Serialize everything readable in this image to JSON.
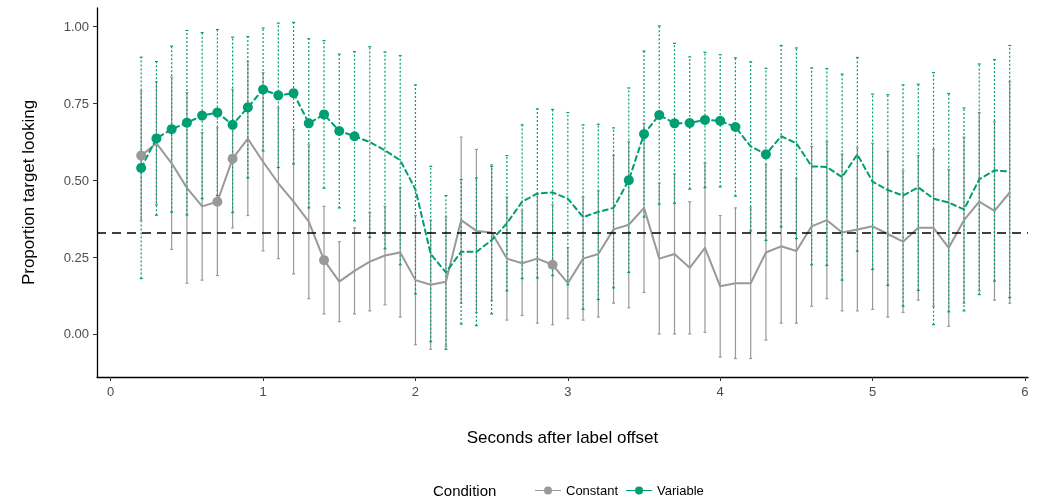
{
  "chart_data": {
    "type": "line",
    "xlabel": "Seconds after label offset",
    "ylabel": "Proportion target looking",
    "legend_title": "Condition",
    "x": [
      0.2,
      0.3,
      0.4,
      0.5,
      0.6,
      0.7,
      0.8,
      0.9,
      1.0,
      1.1,
      1.2,
      1.3,
      1.4,
      1.5,
      1.6,
      1.7,
      1.8,
      1.9,
      2.0,
      2.1,
      2.2,
      2.3,
      2.4,
      2.5,
      2.6,
      2.7,
      2.8,
      2.9,
      3.0,
      3.1,
      3.2,
      3.3,
      3.4,
      3.5,
      3.6,
      3.7,
      3.8,
      3.9,
      4.0,
      4.1,
      4.2,
      4.3,
      4.4,
      4.5,
      4.6,
      4.7,
      4.8,
      4.9,
      5.0,
      5.1,
      5.2,
      5.3,
      5.4,
      5.5,
      5.6,
      5.7,
      5.8,
      5.9
    ],
    "series": [
      {
        "name": "Constant",
        "color": "#999999",
        "line_style": "solid",
        "marker": "none",
        "values": [
          0.58,
          0.62,
          0.555,
          0.475,
          0.415,
          0.43,
          0.57,
          0.635,
          0.56,
          0.49,
          0.43,
          0.365,
          0.24,
          0.17,
          0.205,
          0.235,
          0.255,
          0.265,
          0.175,
          0.16,
          0.17,
          0.37,
          0.335,
          0.33,
          0.245,
          0.23,
          0.245,
          0.225,
          0.165,
          0.245,
          0.26,
          0.34,
          0.355,
          0.41,
          0.245,
          0.26,
          0.215,
          0.28,
          0.155,
          0.165,
          0.165,
          0.265,
          0.285,
          0.27,
          0.35,
          0.37,
          0.33,
          0.34,
          0.35,
          0.325,
          0.3,
          0.345,
          0.345,
          0.28,
          0.37,
          0.43,
          0.4,
          0.46
        ],
        "errors": [
          0.21,
          0.2,
          0.28,
          0.31,
          0.24,
          0.24,
          0.225,
          0.25,
          0.29,
          0.245,
          0.235,
          0.25,
          0.175,
          0.13,
          0.14,
          0.16,
          0.16,
          0.21,
          0.21,
          0.21,
          0.21,
          0.27,
          0.265,
          0.22,
          0.2,
          0.17,
          0.21,
          0.195,
          0.115,
          0.2,
          0.205,
          0.24,
          0.27,
          0.275,
          0.245,
          0.26,
          0.215,
          0.275,
          0.23,
          0.245,
          0.245,
          0.285,
          0.25,
          0.235,
          0.26,
          0.255,
          0.255,
          0.265,
          0.27,
          0.27,
          0.23,
          0.235,
          0.255,
          0.255,
          0.27,
          0.29,
          0.29,
          0.36
        ]
      },
      {
        "name": "Variable",
        "color": "#009e73",
        "line_style": "dashed",
        "marker": "none",
        "values": [
          0.54,
          0.636,
          0.666,
          0.687,
          0.71,
          0.72,
          0.68,
          0.737,
          0.795,
          0.776,
          0.783,
          0.685,
          0.714,
          0.66,
          0.643,
          0.624,
          0.597,
          0.565,
          0.47,
          0.26,
          0.2,
          0.267,
          0.267,
          0.305,
          0.36,
          0.43,
          0.457,
          0.46,
          0.44,
          0.38,
          0.397,
          0.41,
          0.5,
          0.65,
          0.712,
          0.685,
          0.686,
          0.696,
          0.693,
          0.673,
          0.61,
          0.584,
          0.643,
          0.62,
          0.545,
          0.543,
          0.51,
          0.584,
          0.495,
          0.468,
          0.45,
          0.477,
          0.44,
          0.427,
          0.405,
          0.503,
          0.532,
          0.528
        ],
        "errors": [
          0.36,
          0.25,
          0.27,
          0.3,
          0.27,
          0.27,
          0.285,
          0.23,
          0.2,
          0.235,
          0.23,
          0.275,
          0.24,
          0.25,
          0.275,
          0.31,
          0.32,
          0.34,
          0.34,
          0.285,
          0.25,
          0.235,
          0.24,
          0.24,
          0.22,
          0.25,
          0.275,
          0.27,
          0.28,
          0.3,
          0.285,
          0.26,
          0.3,
          0.27,
          0.29,
          0.26,
          0.215,
          0.22,
          0.215,
          0.225,
          0.275,
          0.28,
          0.295,
          0.31,
          0.32,
          0.32,
          0.335,
          0.315,
          0.285,
          0.31,
          0.36,
          0.335,
          0.41,
          0.355,
          0.33,
          0.375,
          0.36,
          0.41
        ]
      },
      {
        "type": "scatter",
        "color": "#999999",
        "x": [
          0.2,
          0.7,
          0.8,
          1.4,
          2.9
        ],
        "values": [
          0.58,
          0.43,
          0.57,
          0.24,
          0.225
        ]
      },
      {
        "type": "scatter",
        "color": "#009e73",
        "x": [
          0.2,
          0.3,
          0.4,
          0.5,
          0.6,
          0.7,
          0.8,
          0.9,
          1.0,
          1.1,
          1.2,
          1.3,
          1.4,
          1.5,
          1.6,
          3.4,
          3.5,
          3.6,
          3.7,
          3.8,
          3.9,
          4.0,
          4.1,
          4.3
        ],
        "values": [
          0.54,
          0.636,
          0.666,
          0.687,
          0.71,
          0.72,
          0.68,
          0.737,
          0.795,
          0.776,
          0.783,
          0.685,
          0.714,
          0.66,
          0.643,
          0.5,
          0.65,
          0.712,
          0.685,
          0.686,
          0.696,
          0.693,
          0.673,
          0.584
        ]
      }
    ],
    "ref_lines": [
      {
        "axis": "y",
        "value": 0.33,
        "color": "#000000",
        "line_style": "dashed"
      }
    ],
    "xlim": [
      -0.09,
      6.02
    ],
    "xticks": [
      0,
      1,
      2,
      3,
      4,
      5,
      6
    ],
    "ylim": [
      -0.14,
      1.06
    ],
    "yticks": [
      {
        "value": 0,
        "label": "0.00"
      },
      {
        "value": 0.25,
        "label": "0.25"
      },
      {
        "value": 0.5,
        "label": "0.50"
      },
      {
        "value": 0.75,
        "label": "0.75"
      },
      {
        "value": 1,
        "label": "1.00"
      }
    ],
    "grid": false,
    "legend": "bottom",
    "marker": "circle"
  }
}
